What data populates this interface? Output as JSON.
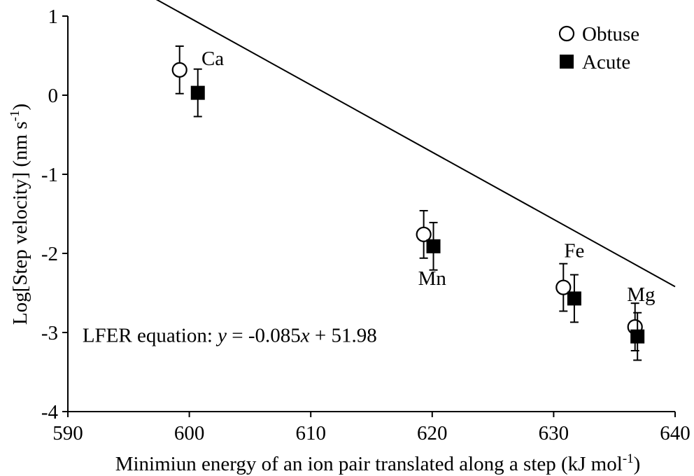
{
  "chart_data": {
    "type": "scatter",
    "xlabel": "Minimiun energy of an ion pair translated along a step (kJ mol",
    "xlabel_sup": "-1",
    "xlabel_end": ")",
    "ylabel": "Log[Step velocity] (nm s",
    "ylabel_sup": "-1",
    "ylabel_end": ")",
    "xlim": [
      590,
      640
    ],
    "ylim": [
      -4,
      1
    ],
    "xticks": [
      590,
      600,
      610,
      620,
      630,
      640
    ],
    "xtick_labels": [
      "590",
      "600",
      "610",
      "620",
      "630",
      "640"
    ],
    "yticks": [
      1,
      0,
      -1,
      -2,
      -3,
      -4
    ],
    "ytick_labels": [
      "1",
      "0",
      "-1",
      "-2",
      "-3",
      "-4"
    ],
    "grid": false,
    "legend_position": "top-right",
    "series": [
      {
        "name": "Obtuse",
        "marker": "open-circle",
        "points": [
          {
            "x": 599.2,
            "y": 0.32,
            "err": 0.3
          },
          {
            "x": 619.3,
            "y": -1.76,
            "err": 0.3
          },
          {
            "x": 630.8,
            "y": -2.43,
            "err": 0.3
          },
          {
            "x": 636.7,
            "y": -2.93,
            "err": 0.3
          }
        ]
      },
      {
        "name": "Acute",
        "marker": "filled-square",
        "points": [
          {
            "x": 600.7,
            "y": 0.03,
            "err": 0.3
          },
          {
            "x": 620.1,
            "y": -1.91,
            "err": 0.3
          },
          {
            "x": 631.7,
            "y": -2.57,
            "err": 0.3
          },
          {
            "x": 636.9,
            "y": -3.05,
            "err": 0.3
          }
        ]
      }
    ],
    "fit_line": {
      "slope": -0.085,
      "intercept": 51.98,
      "x_from": 590,
      "x_to": 640
    },
    "point_labels": [
      {
        "text": "Ca",
        "x": 601.0,
        "y": 0.38
      },
      {
        "text": "Mn",
        "x": 620.0,
        "y": -2.4
      },
      {
        "text": "Fe",
        "x": 631.7,
        "y": -2.05
      },
      {
        "text": "Mg",
        "x": 637.2,
        "y": -2.6
      }
    ],
    "equation": {
      "prefix": "LFER equation: ",
      "y_var": "y",
      "middle": " = -0.085",
      "x_var": "x",
      "suffix": " + 51.98",
      "x": 591.2,
      "y": -3.12
    }
  }
}
